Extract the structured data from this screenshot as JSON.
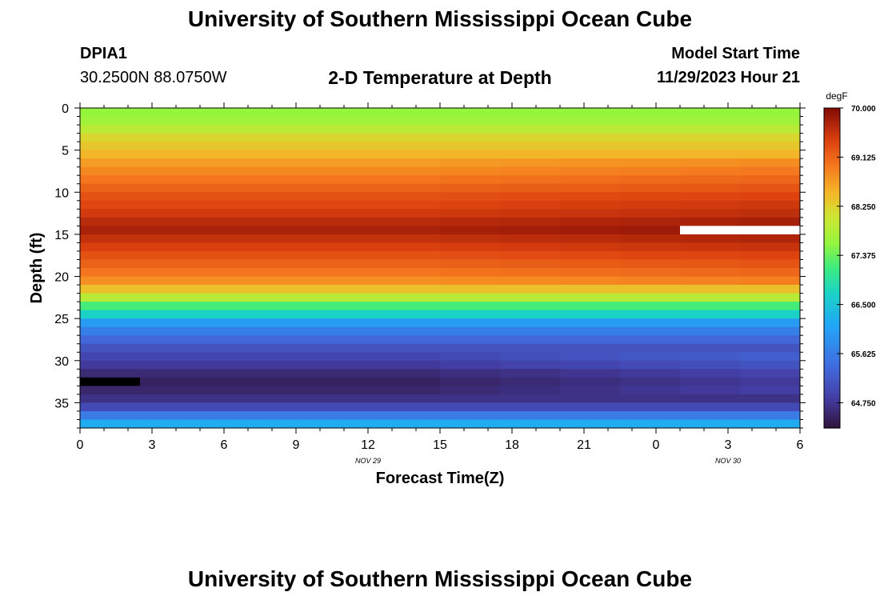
{
  "page": {
    "title": "University of Southern Mississippi Ocean Cube",
    "footer_title": "University of Southern Mississippi Ocean Cube",
    "station_id": "DPIA1",
    "location": "30.2500N  88.0750W",
    "subtitle": "2-D Temperature at Depth",
    "model_start_label": "Model Start Time",
    "model_start_value": "11/29/2023 Hour 21"
  },
  "chart_data": {
    "type": "heatmap",
    "title": "2-D Temperature at Depth",
    "xlabel": "Forecast Time(Z)",
    "ylabel": "Depth (ft)",
    "x_tick_labels": [
      "0",
      "3",
      "6",
      "9",
      "12",
      "15",
      "18",
      "21",
      "0",
      "3",
      "6"
    ],
    "x_hours_since_start": [
      0,
      3,
      6,
      9,
      12,
      15,
      18,
      21,
      24,
      27,
      30
    ],
    "x_date_labels": [
      {
        "text": "NOV 29",
        "at_hour": 12
      },
      {
        "text": "NOV 30",
        "at_hour": 27
      }
    ],
    "y_ticks": [
      0,
      5,
      10,
      15,
      20,
      25,
      30,
      35
    ],
    "ylim": [
      0,
      38
    ],
    "y_inverted": true,
    "colorbar": {
      "unit": "degF",
      "range": [
        64.3,
        70.0
      ],
      "tick_values": [
        64.75,
        65.625,
        66.5,
        67.375,
        68.25,
        69.125,
        70.0
      ],
      "tick_labels": [
        "64.750",
        "65.625",
        "66.500",
        "67.375",
        "68.250",
        "69.125",
        "70.000"
      ]
    },
    "depth_bins_ft": [
      0,
      1,
      2,
      3,
      4,
      5,
      6,
      7,
      8,
      9,
      10,
      11,
      12,
      13,
      14,
      15,
      16,
      17,
      18,
      19,
      20,
      21,
      22,
      23,
      24,
      25,
      26,
      27,
      28,
      29,
      30,
      31,
      32,
      33,
      34,
      35,
      36,
      37
    ],
    "time_bins_hours": [
      0,
      2.5,
      5,
      7.5,
      10,
      12.5,
      15,
      17.5,
      20,
      22.5,
      25,
      27.5
    ],
    "temperature_profile_degF": [
      67.6,
      67.7,
      67.9,
      68.2,
      68.35,
      68.5,
      68.7,
      68.85,
      69.0,
      69.15,
      69.3,
      69.4,
      69.5,
      69.65,
      69.75,
      69.6,
      69.45,
      69.3,
      69.15,
      69.0,
      68.8,
      68.4,
      67.9,
      67.2,
      66.7,
      66.0,
      65.65,
      65.35,
      65.1,
      64.95,
      64.8,
      64.6,
      64.5,
      64.55,
      64.7,
      65.0,
      65.6,
      66.2
    ],
    "warming_by_time_degF": [
      0.0,
      0.0,
      0.0,
      0.0,
      0.0,
      0.0,
      0.02,
      0.04,
      0.06,
      0.08,
      0.1,
      0.12
    ],
    "shallow_cooling_by_time_degF": [
      0.0,
      0.0,
      0.0,
      0.0,
      0.0,
      0.0,
      0.0,
      0.0,
      0.0,
      0.0,
      0.0,
      0.0
    ],
    "missing_cells": [
      {
        "depth_ft": [
          14,
          15
        ],
        "hours": [
          25,
          30
        ],
        "color": "#ffffff"
      },
      {
        "depth_ft": [
          32,
          33
        ],
        "hours": [
          0,
          2.5
        ],
        "color": "#000000"
      }
    ]
  }
}
